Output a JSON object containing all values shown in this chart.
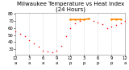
{
  "title": "Milwaukee Temperature vs Heat Index\n(24 Hours)",
  "background_color": "#ffffff",
  "grid_color": "#cccccc",
  "temp_color": "#ff0000",
  "heat_color": "#ff8800",
  "ylim": [
    22,
    82
  ],
  "xlim": [
    0,
    24
  ],
  "hours": [
    0,
    1,
    2,
    3,
    4,
    5,
    6,
    7,
    8,
    9,
    10,
    11,
    12,
    13,
    14,
    15,
    16,
    17,
    18,
    19,
    20,
    21,
    22,
    23,
    24
  ],
  "temp_values": [
    55,
    52,
    48,
    43,
    38,
    33,
    28,
    26,
    25,
    28,
    35,
    48,
    60,
    67,
    70,
    72,
    73,
    70,
    68,
    65,
    60,
    62,
    64,
    67,
    70
  ],
  "heat_values": [
    null,
    null,
    null,
    null,
    null,
    null,
    null,
    null,
    null,
    null,
    null,
    null,
    72,
    72,
    72,
    72,
    73,
    null,
    null,
    null,
    null,
    72,
    72,
    72,
    null
  ],
  "heat_segments": [
    {
      "x": [
        12,
        13,
        14,
        15,
        16
      ],
      "y": [
        72,
        72,
        72,
        72,
        73
      ]
    },
    {
      "x": [
        21,
        22,
        23
      ],
      "y": [
        72,
        72,
        72
      ]
    }
  ],
  "x_tick_positions": [
    0,
    3,
    6,
    9,
    12,
    15,
    18,
    21,
    24
  ],
  "x_tick_labels": [
    "12",
    "3",
    "6",
    "9",
    "12",
    "3",
    "6",
    "9",
    "12"
  ],
  "x_tick_labels2": [
    "a",
    "a",
    "a",
    "a",
    "p",
    "p",
    "p",
    "p",
    "a"
  ],
  "y_tick_positions": [
    30,
    40,
    50,
    60,
    70,
    80
  ],
  "y_tick_labels": [
    "30",
    "40",
    "50",
    "60",
    "70",
    "80"
  ],
  "vgrid_positions": [
    3,
    6,
    9,
    12,
    15,
    18,
    21
  ],
  "title_fontsize": 5.0,
  "tick_fontsize": 3.8
}
